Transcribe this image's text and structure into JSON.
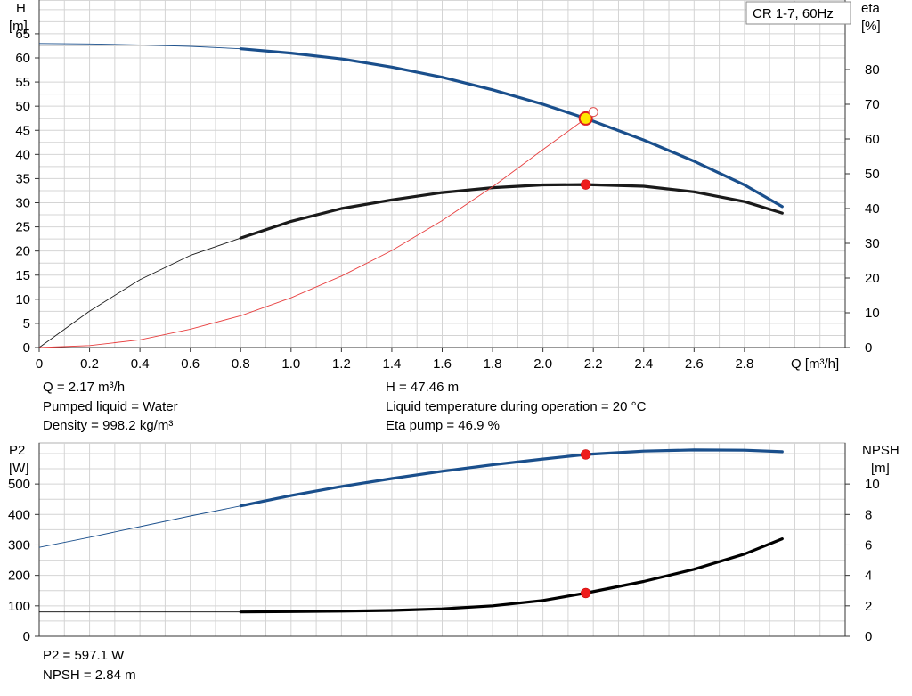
{
  "chart_data": [
    {
      "type": "line",
      "legend_box": "CR 1-7, 60Hz",
      "xlabel": "Q [m³/h]",
      "ylabel_left": [
        "H",
        "[m]"
      ],
      "ylabel_right": [
        "eta",
        "[%]"
      ],
      "xlim": [
        0,
        3.2
      ],
      "ylim_left": [
        0,
        72
      ],
      "ylim_right": [
        0,
        100
      ],
      "x_ticks": [
        "0",
        "0.2",
        "0.4",
        "0.6",
        "0.8",
        "1.0",
        "1.2",
        "1.4",
        "1.6",
        "1.8",
        "2.0",
        "2.2",
        "2.4",
        "2.6",
        "2.8"
      ],
      "x_tick_values": [
        0,
        0.2,
        0.4,
        0.6,
        0.8,
        1.0,
        1.2,
        1.4,
        1.6,
        1.8,
        2.0,
        2.2,
        2.4,
        2.6,
        2.8
      ],
      "y_left_ticks": [
        0,
        5,
        10,
        15,
        20,
        25,
        30,
        35,
        40,
        45,
        50,
        55,
        60,
        65
      ],
      "y_right_ticks": [
        0,
        10,
        20,
        30,
        40,
        50,
        60,
        70,
        80
      ],
      "series": [
        {
          "key": "H",
          "axis": "left",
          "color": "#1a4f8c",
          "x": [
            0,
            0.2,
            0.4,
            0.6,
            0.8,
            1.0,
            1.2,
            1.4,
            1.6,
            1.8,
            2.0,
            2.17,
            2.4,
            2.6,
            2.8,
            2.95
          ],
          "y": [
            63,
            62.9,
            62.7,
            62.4,
            61.9,
            61.0,
            59.8,
            58.1,
            56.0,
            53.4,
            50.4,
            47.46,
            43.0,
            38.6,
            33.7,
            29.2
          ],
          "bold_from": 0.8
        },
        {
          "key": "eta",
          "axis": "right",
          "color": "#1a1a1a",
          "x": [
            0,
            0.2,
            0.4,
            0.6,
            0.8,
            1.0,
            1.2,
            1.4,
            1.6,
            1.8,
            2.0,
            2.17,
            2.4,
            2.6,
            2.8,
            2.95
          ],
          "y": [
            0,
            10.5,
            19.5,
            26.5,
            31.5,
            36.3,
            40.0,
            42.5,
            44.6,
            46.0,
            46.8,
            46.9,
            46.4,
            44.8,
            42.0,
            38.7
          ],
          "bold_from": 0.8
        },
        {
          "key": "system",
          "axis": "left",
          "color": "#e84040",
          "x": [
            0,
            0.2,
            0.4,
            0.6,
            0.8,
            1.0,
            1.2,
            1.4,
            1.6,
            1.8,
            2.0,
            2.17,
            2.2
          ],
          "y": [
            0,
            0.4,
            1.6,
            3.8,
            6.6,
            10.3,
            14.8,
            20.1,
            26.3,
            33.3,
            41.0,
            47.46,
            48.8
          ],
          "bold_from": 99
        }
      ],
      "points": [
        {
          "x": 2.17,
          "y": 47.46,
          "axis": "left",
          "style": "duty"
        },
        {
          "x": 2.2,
          "y": 48.8,
          "axis": "left",
          "style": "open"
        },
        {
          "x": 2.17,
          "y": 46.9,
          "axis": "right",
          "style": "red"
        }
      ]
    },
    {
      "type": "line",
      "xlim": [
        0,
        3.2
      ],
      "ylabel_left": [
        "P2",
        "[W]"
      ],
      "ylabel_right": [
        "NPSH",
        "[m]"
      ],
      "ylim_left": [
        0,
        635
      ],
      "ylim_right": [
        0,
        12.7
      ],
      "y_left_ticks": [
        0,
        100,
        200,
        300,
        400,
        500
      ],
      "y_right_ticks": [
        0,
        2,
        4,
        6,
        8,
        10
      ],
      "series": [
        {
          "key": "P2",
          "axis": "left",
          "color": "#1a4f8c",
          "x": [
            0,
            0.2,
            0.4,
            0.6,
            0.8,
            1.0,
            1.2,
            1.4,
            1.6,
            1.8,
            2.0,
            2.17,
            2.4,
            2.6,
            2.8,
            2.95
          ],
          "y": [
            292,
            325,
            360,
            395,
            428,
            462,
            492,
            518,
            542,
            563,
            582,
            597.1,
            608,
            612,
            611,
            606
          ],
          "bold_from": 0.8
        },
        {
          "key": "NPSH",
          "axis": "right",
          "color": "#000000",
          "x": [
            0,
            0.2,
            0.4,
            0.6,
            0.8,
            1.0,
            1.2,
            1.4,
            1.6,
            1.8,
            2.0,
            2.17,
            2.4,
            2.6,
            2.8,
            2.95
          ],
          "y": [
            1.6,
            1.6,
            1.6,
            1.6,
            1.6,
            1.62,
            1.65,
            1.7,
            1.8,
            2.0,
            2.35,
            2.84,
            3.6,
            4.4,
            5.4,
            6.4
          ],
          "bold_from": 0.8
        }
      ],
      "points": [
        {
          "x": 2.17,
          "y": 597.1,
          "axis": "left",
          "style": "red"
        },
        {
          "x": 2.17,
          "y": 2.84,
          "axis": "right",
          "style": "red"
        }
      ]
    }
  ],
  "info_top": {
    "q": "Q = 2.17 m³/h",
    "liquid": "Pumped liquid = Water",
    "density": "Density = 998.2 kg/m³",
    "h": "H = 47.46 m",
    "temp": "Liquid temperature during operation = 20 °C",
    "eta": "Eta pump = 46.9 %"
  },
  "info_bottom": {
    "p2": "P2 = 597.1 W",
    "npsh": "NPSH = 2.84 m"
  }
}
